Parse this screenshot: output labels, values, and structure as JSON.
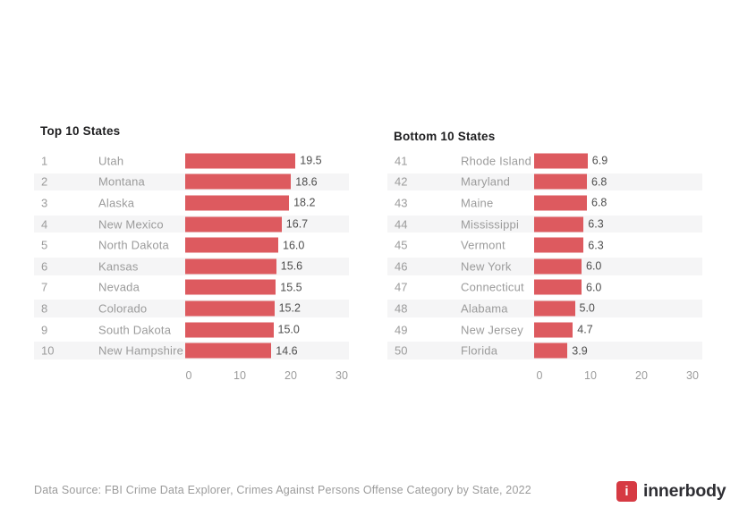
{
  "colors": {
    "bar": "#DD5A5F",
    "band": "#F5F5F6",
    "muted": "#9B9B9B",
    "value": "#4E4E4E",
    "title": "#1D1D1F",
    "brand-red": "#D63A43",
    "wordmark": "#2E2E33"
  },
  "chart_data": [
    {
      "type": "bar",
      "orientation": "horizontal",
      "title": "Top 10 States",
      "ranks": [
        1,
        2,
        3,
        4,
        5,
        6,
        7,
        8,
        9,
        10
      ],
      "categories": [
        "Utah",
        "Montana",
        "Alaska",
        "New Mexico",
        "North Dakota",
        "Kansas",
        "Nevada",
        "Colorado",
        "South Dakota",
        "New Hampshire"
      ],
      "values": [
        19.5,
        18.6,
        18.2,
        16.7,
        16.0,
        15.6,
        15.5,
        15.2,
        15.0,
        14.6
      ],
      "xlabel": "",
      "ylabel": "",
      "xlim": [
        0,
        30
      ],
      "xticks": [
        0,
        10,
        20,
        30
      ],
      "grid": false,
      "legend": false
    },
    {
      "type": "bar",
      "orientation": "horizontal",
      "title": "Bottom 10 States",
      "ranks": [
        41,
        42,
        43,
        44,
        45,
        46,
        47,
        48,
        49,
        50
      ],
      "categories": [
        "Rhode Island",
        "Maryland",
        "Maine",
        "Mississippi",
        "Vermont",
        "New York",
        "Connecticut",
        "Alabama",
        "New Jersey",
        "Florida"
      ],
      "values": [
        6.9,
        6.8,
        6.8,
        6.3,
        6.3,
        6.0,
        6.0,
        5.0,
        4.7,
        3.9
      ],
      "xlabel": "",
      "ylabel": "",
      "xlim": [
        0,
        30
      ],
      "xticks": [
        0,
        10,
        20,
        30
      ],
      "grid": false,
      "legend": false
    }
  ],
  "footer": {
    "source_text": "Data Source: FBI Crime Data Explorer, Crimes Against Persons Offense Category by State, 2022"
  },
  "brand": {
    "logo_letter": "i",
    "wordmark": "innerbody"
  }
}
